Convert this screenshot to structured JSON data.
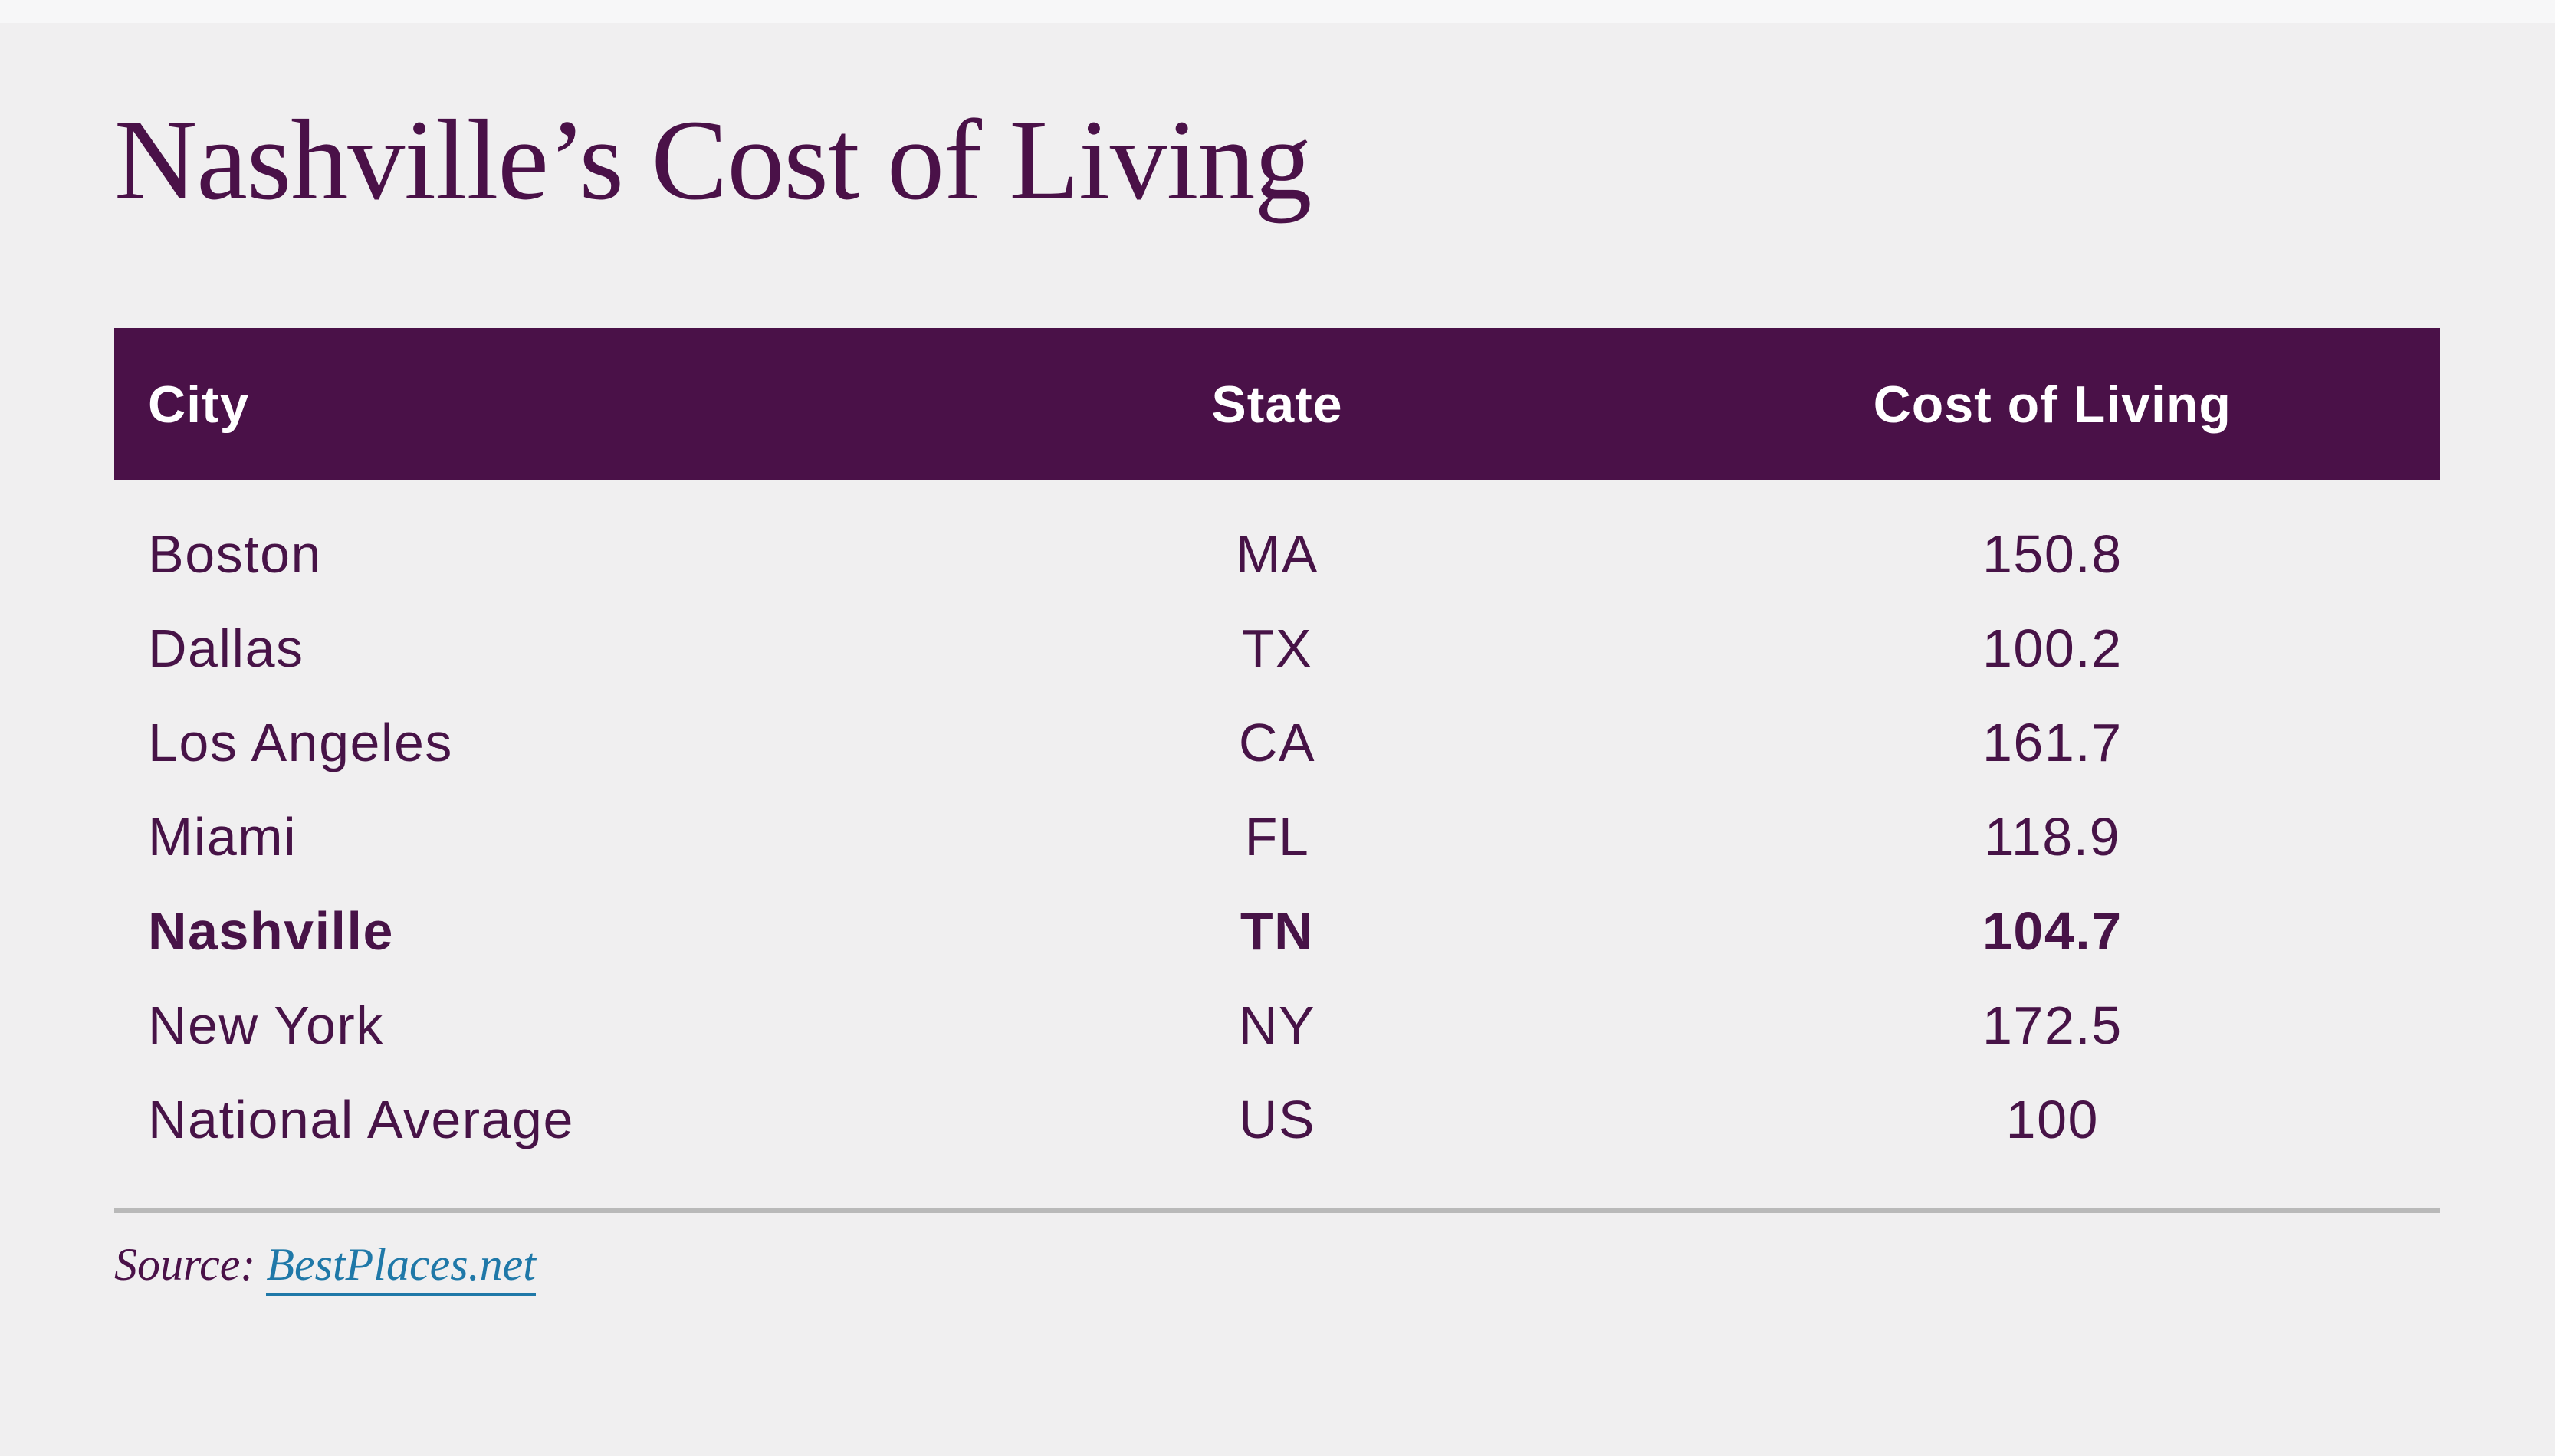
{
  "page": {
    "background": "#f0eff0",
    "accent_purple": "#4a1148",
    "row_text_color": "#471347",
    "divider_color": "#b9b9b9",
    "link_color": "#1f78a8",
    "header_text_color": "#ffffff"
  },
  "title": "Nashville’s Cost of Living",
  "table": {
    "columns": [
      "City",
      "State",
      "Cost of Living"
    ],
    "rows": [
      {
        "city": "Boston",
        "state": "MA",
        "cost": "150.8",
        "highlight": false
      },
      {
        "city": "Dallas",
        "state": "TX",
        "cost": "100.2",
        "highlight": false
      },
      {
        "city": "Los Angeles",
        "state": "CA",
        "cost": "161.7",
        "highlight": false
      },
      {
        "city": "Miami",
        "state": "FL",
        "cost": "118.9",
        "highlight": false
      },
      {
        "city": "Nashville",
        "state": "TN",
        "cost": "104.7",
        "highlight": true
      },
      {
        "city": "New York",
        "state": "NY",
        "cost": "172.5",
        "highlight": false
      },
      {
        "city": "National Average",
        "state": "US",
        "cost": "100",
        "highlight": false
      }
    ]
  },
  "source": {
    "label": "Source:",
    "link_text": "BestPlaces.net"
  },
  "chart_data": {
    "type": "table",
    "title": "Nashville’s Cost of Living",
    "columns": [
      "City",
      "State",
      "Cost of Living"
    ],
    "rows": [
      [
        "Boston",
        "MA",
        150.8
      ],
      [
        "Dallas",
        "TX",
        100.2
      ],
      [
        "Los Angeles",
        "CA",
        161.7
      ],
      [
        "Miami",
        "FL",
        118.9
      ],
      [
        "Nashville",
        "TN",
        104.7
      ],
      [
        "New York",
        "NY",
        172.5
      ],
      [
        "National Average",
        "US",
        100
      ]
    ],
    "highlighted_row": "Nashville",
    "source": "BestPlaces.net"
  }
}
